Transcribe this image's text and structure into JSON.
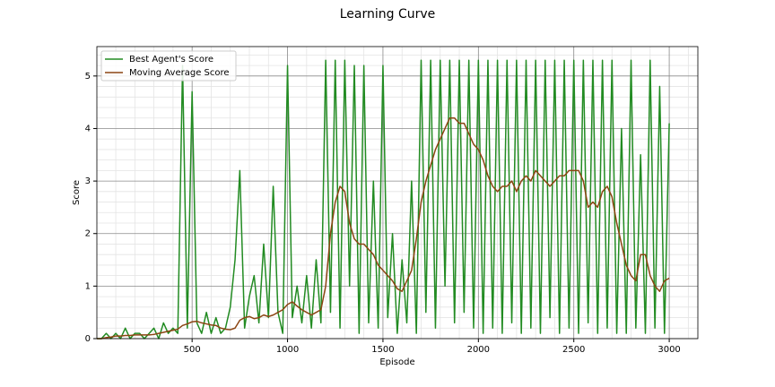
{
  "chart_data": {
    "type": "line",
    "title": "Learning Curve",
    "xlabel": "Episode",
    "ylabel": "Score",
    "x": [
      1,
      25,
      50,
      75,
      100,
      125,
      150,
      175,
      200,
      225,
      250,
      275,
      300,
      325,
      350,
      375,
      400,
      425,
      450,
      475,
      500,
      525,
      550,
      575,
      600,
      625,
      650,
      675,
      700,
      725,
      750,
      775,
      800,
      825,
      850,
      875,
      900,
      925,
      950,
      975,
      1000,
      1025,
      1050,
      1075,
      1100,
      1125,
      1150,
      1175,
      1200,
      1225,
      1250,
      1275,
      1300,
      1325,
      1350,
      1375,
      1400,
      1425,
      1450,
      1475,
      1500,
      1525,
      1550,
      1575,
      1600,
      1625,
      1650,
      1675,
      1700,
      1725,
      1750,
      1775,
      1800,
      1825,
      1850,
      1875,
      1900,
      1925,
      1950,
      1975,
      2000,
      2025,
      2050,
      2075,
      2100,
      2125,
      2150,
      2175,
      2200,
      2225,
      2250,
      2275,
      2300,
      2325,
      2350,
      2375,
      2400,
      2425,
      2450,
      2475,
      2500,
      2525,
      2550,
      2575,
      2600,
      2625,
      2650,
      2675,
      2700,
      2725,
      2750,
      2775,
      2800,
      2825,
      2850,
      2875,
      2900,
      2925,
      2950,
      2975,
      3000
    ],
    "series": [
      {
        "name": "Best Agent's Score",
        "color": "#228b22",
        "values": [
          0,
          0,
          0.1,
          0,
          0.1,
          0,
          0.2,
          0,
          0.1,
          0.1,
          0,
          0.1,
          0.2,
          0,
          0.3,
          0.1,
          0.2,
          0.1,
          5.2,
          0.2,
          4.7,
          0.3,
          0.1,
          0.5,
          0.1,
          0.4,
          0.1,
          0.2,
          0.6,
          1.5,
          3.2,
          0.2,
          0.8,
          1.2,
          0.3,
          1.8,
          0.4,
          2.9,
          0.5,
          0.1,
          5.2,
          0.4,
          1.0,
          0.3,
          1.2,
          0.2,
          1.5,
          0.3,
          5.3,
          0.5,
          5.3,
          0.2,
          5.3,
          1.0,
          5.2,
          0.1,
          5.2,
          0.3,
          3.0,
          0.2,
          5.2,
          0.4,
          2.0,
          0.1,
          1.5,
          0.3,
          3.0,
          0.1,
          5.3,
          0.5,
          5.3,
          0.2,
          5.3,
          1.0,
          5.3,
          0.3,
          5.3,
          0.5,
          5.3,
          0.2,
          5.3,
          0.1,
          5.3,
          0.2,
          5.3,
          0.1,
          5.3,
          0.3,
          5.3,
          0.1,
          5.3,
          0.2,
          5.3,
          0.1,
          5.3,
          0.4,
          5.3,
          0.1,
          5.3,
          0.2,
          5.3,
          0.1,
          5.3,
          0.3,
          5.3,
          0.1,
          5.3,
          0.2,
          5.3,
          0.1,
          4.0,
          0.1,
          5.3,
          0.2,
          3.5,
          0.1,
          5.3,
          0.2,
          4.8,
          0.1,
          4.1
        ]
      },
      {
        "name": "Moving Average Score",
        "color": "#8b4513",
        "values": [
          0,
          0,
          0.02,
          0.03,
          0.05,
          0.05,
          0.06,
          0.06,
          0.07,
          0.07,
          0.07,
          0.07,
          0.08,
          0.1,
          0.12,
          0.14,
          0.16,
          0.18,
          0.25,
          0.28,
          0.32,
          0.33,
          0.3,
          0.28,
          0.26,
          0.25,
          0.2,
          0.18,
          0.17,
          0.2,
          0.35,
          0.4,
          0.42,
          0.38,
          0.4,
          0.45,
          0.42,
          0.45,
          0.5,
          0.55,
          0.65,
          0.7,
          0.62,
          0.55,
          0.5,
          0.45,
          0.5,
          0.55,
          1.0,
          2.0,
          2.6,
          2.9,
          2.8,
          2.2,
          1.9,
          1.8,
          1.8,
          1.7,
          1.6,
          1.4,
          1.3,
          1.2,
          1.1,
          0.95,
          0.9,
          1.1,
          1.3,
          1.9,
          2.6,
          3.0,
          3.3,
          3.6,
          3.8,
          4.0,
          4.2,
          4.2,
          4.1,
          4.1,
          3.9,
          3.7,
          3.6,
          3.4,
          3.1,
          2.9,
          2.8,
          2.9,
          2.9,
          3.0,
          2.8,
          3.0,
          3.1,
          3.0,
          3.2,
          3.1,
          3.0,
          2.9,
          3.0,
          3.1,
          3.1,
          3.2,
          3.2,
          3.2,
          3.0,
          2.5,
          2.6,
          2.5,
          2.8,
          2.9,
          2.7,
          2.2,
          1.8,
          1.4,
          1.2,
          1.1,
          1.6,
          1.6,
          1.2,
          1.0,
          0.9,
          1.1,
          1.15
        ]
      }
    ],
    "xlim": [
      1,
      3150
    ],
    "ylim": [
      0,
      5.56
    ],
    "xticks": [
      500,
      1000,
      1500,
      2000,
      2500,
      3000
    ],
    "yticks": [
      0,
      1,
      2,
      3,
      4,
      5
    ],
    "x_minor_ticks": [
      100,
      200,
      300,
      400,
      600,
      700,
      800,
      900,
      1100,
      1200,
      1300,
      1400,
      1600,
      1700,
      1800,
      1900,
      2100,
      2200,
      2300,
      2400,
      2600,
      2700,
      2800,
      2900,
      3100
    ],
    "y_minor_ticks": [
      0.2,
      0.4,
      0.6,
      0.8,
      1.2,
      1.4,
      1.6,
      1.8,
      2.2,
      2.4,
      2.6,
      2.8,
      3.2,
      3.4,
      3.6,
      3.8,
      4.2,
      4.4,
      4.6,
      4.8,
      5.2,
      5.4
    ],
    "grid": true,
    "legend": "upper left"
  }
}
